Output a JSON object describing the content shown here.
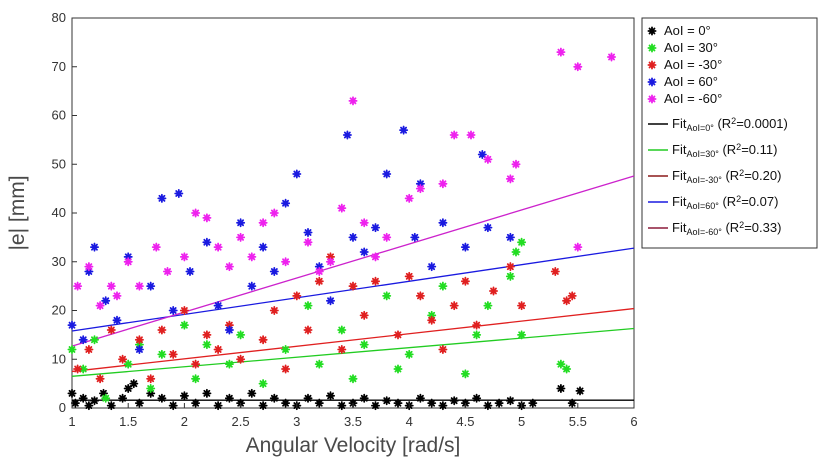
{
  "chart_data": {
    "type": "scatter",
    "xlabel": "Angular Velocity [rad/s]",
    "ylabel": "|e| [mm]",
    "xlim": [
      1,
      6
    ],
    "ylim": [
      0,
      80
    ],
    "xticks": [
      "1",
      "1.5",
      "2",
      "2.5",
      "3",
      "3.5",
      "4",
      "4.5",
      "5",
      "5.5",
      "6"
    ],
    "yticks": [
      "0",
      "10",
      "20",
      "30",
      "40",
      "50",
      "60",
      "70",
      "80"
    ],
    "grid": false,
    "legend_position": "outside-right",
    "series": [
      {
        "name": "AoI = 0°",
        "color": "#000000",
        "points": [
          [
            1.0,
            3
          ],
          [
            1.03,
            1
          ],
          [
            1.1,
            2
          ],
          [
            1.15,
            0.5
          ],
          [
            1.2,
            1.5
          ],
          [
            1.28,
            3
          ],
          [
            1.35,
            0.5
          ],
          [
            1.45,
            2
          ],
          [
            1.5,
            4
          ],
          [
            1.55,
            5
          ],
          [
            1.6,
            1
          ],
          [
            1.7,
            3
          ],
          [
            1.8,
            2
          ],
          [
            1.9,
            0.5
          ],
          [
            2.0,
            2.5
          ],
          [
            2.1,
            1
          ],
          [
            2.2,
            3
          ],
          [
            2.3,
            0.5
          ],
          [
            2.4,
            2
          ],
          [
            2.5,
            1
          ],
          [
            2.6,
            3
          ],
          [
            2.7,
            0.5
          ],
          [
            2.8,
            2
          ],
          [
            2.9,
            1
          ],
          [
            3.0,
            0.5
          ],
          [
            3.1,
            2
          ],
          [
            3.2,
            1
          ],
          [
            3.3,
            2.5
          ],
          [
            3.4,
            0.5
          ],
          [
            3.5,
            1
          ],
          [
            3.6,
            2
          ],
          [
            3.7,
            0.5
          ],
          [
            3.8,
            1.5
          ],
          [
            3.9,
            1
          ],
          [
            4.0,
            0.5
          ],
          [
            4.1,
            2
          ],
          [
            4.2,
            1
          ],
          [
            4.3,
            0.5
          ],
          [
            4.4,
            1.5
          ],
          [
            4.5,
            1
          ],
          [
            4.6,
            2
          ],
          [
            4.7,
            0.5
          ],
          [
            4.8,
            1
          ],
          [
            4.9,
            1.5
          ],
          [
            5.0,
            0.5
          ],
          [
            5.1,
            1
          ],
          [
            5.35,
            4
          ],
          [
            5.45,
            1
          ],
          [
            5.52,
            3.5
          ]
        ],
        "fit_label": "AoI=0°",
        "fit_r2": "0.0001",
        "fit_line": [
          [
            1,
            1.6
          ],
          [
            6,
            1.6
          ]
        ]
      },
      {
        "name": "AoI = 30°",
        "color": "#22dd22",
        "points": [
          [
            1.0,
            12
          ],
          [
            1.1,
            8
          ],
          [
            1.2,
            14
          ],
          [
            1.3,
            2
          ],
          [
            1.5,
            9
          ],
          [
            1.6,
            13
          ],
          [
            1.7,
            4
          ],
          [
            1.8,
            11
          ],
          [
            2.0,
            17
          ],
          [
            2.1,
            6
          ],
          [
            2.2,
            13
          ],
          [
            2.4,
            9
          ],
          [
            2.5,
            15
          ],
          [
            2.7,
            5
          ],
          [
            2.9,
            12
          ],
          [
            3.1,
            21
          ],
          [
            3.2,
            9
          ],
          [
            3.4,
            16
          ],
          [
            3.5,
            6
          ],
          [
            3.6,
            13
          ],
          [
            3.8,
            23
          ],
          [
            3.9,
            8
          ],
          [
            4.0,
            11
          ],
          [
            4.2,
            19
          ],
          [
            4.3,
            25
          ],
          [
            4.5,
            7
          ],
          [
            4.6,
            15
          ],
          [
            4.7,
            21
          ],
          [
            4.9,
            27
          ],
          [
            4.95,
            32
          ],
          [
            5.0,
            34
          ],
          [
            5.0,
            15
          ],
          [
            5.35,
            9
          ],
          [
            5.4,
            8
          ]
        ],
        "fit_label": "AoI=30°",
        "fit_r2": "0.11",
        "fit_line": [
          [
            1,
            6.5
          ],
          [
            6,
            16.3
          ]
        ]
      },
      {
        "name": "AoI = -30°",
        "color": "#e02020",
        "points": [
          [
            1.05,
            8
          ],
          [
            1.15,
            12
          ],
          [
            1.25,
            6
          ],
          [
            1.35,
            16
          ],
          [
            1.45,
            10
          ],
          [
            1.6,
            14
          ],
          [
            1.7,
            6
          ],
          [
            1.8,
            16
          ],
          [
            1.9,
            11
          ],
          [
            2.0,
            20
          ],
          [
            2.1,
            9
          ],
          [
            2.2,
            15
          ],
          [
            2.3,
            12
          ],
          [
            2.4,
            17
          ],
          [
            2.5,
            10
          ],
          [
            2.7,
            14
          ],
          [
            2.8,
            20
          ],
          [
            2.9,
            8
          ],
          [
            3.0,
            23
          ],
          [
            3.1,
            16
          ],
          [
            3.2,
            26
          ],
          [
            3.3,
            31
          ],
          [
            3.4,
            12
          ],
          [
            3.5,
            25
          ],
          [
            3.6,
            19
          ],
          [
            3.7,
            26
          ],
          [
            3.9,
            15
          ],
          [
            4.0,
            27
          ],
          [
            4.1,
            23
          ],
          [
            4.2,
            18
          ],
          [
            4.3,
            12
          ],
          [
            4.4,
            21
          ],
          [
            4.5,
            26
          ],
          [
            4.6,
            17
          ],
          [
            4.75,
            24
          ],
          [
            4.9,
            29
          ],
          [
            5.0,
            21
          ],
          [
            5.3,
            28
          ],
          [
            5.4,
            22
          ],
          [
            5.45,
            23
          ]
        ],
        "fit_label": "AoI=-30°",
        "fit_r2": "0.20",
        "fit_line": [
          [
            1,
            7.5
          ],
          [
            6,
            20.4
          ]
        ]
      },
      {
        "name": "AoI = 60°",
        "color": "#1a1ae0",
        "points": [
          [
            1.0,
            17
          ],
          [
            1.1,
            14
          ],
          [
            1.15,
            28
          ],
          [
            1.2,
            33
          ],
          [
            1.3,
            22
          ],
          [
            1.4,
            18
          ],
          [
            1.5,
            31
          ],
          [
            1.6,
            12
          ],
          [
            1.7,
            25
          ],
          [
            1.8,
            43
          ],
          [
            1.9,
            20
          ],
          [
            1.95,
            44
          ],
          [
            2.05,
            28
          ],
          [
            2.2,
            34
          ],
          [
            2.3,
            21
          ],
          [
            2.4,
            16
          ],
          [
            2.5,
            38
          ],
          [
            2.6,
            25
          ],
          [
            2.7,
            33
          ],
          [
            2.8,
            28
          ],
          [
            2.9,
            42
          ],
          [
            3.0,
            48
          ],
          [
            3.1,
            36
          ],
          [
            3.2,
            29
          ],
          [
            3.3,
            22
          ],
          [
            3.45,
            56
          ],
          [
            3.5,
            35
          ],
          [
            3.6,
            32
          ],
          [
            3.7,
            37
          ],
          [
            3.8,
            48
          ],
          [
            3.95,
            57
          ],
          [
            4.05,
            35
          ],
          [
            4.1,
            46
          ],
          [
            4.2,
            29
          ],
          [
            4.3,
            38
          ],
          [
            4.5,
            33
          ],
          [
            4.65,
            52
          ],
          [
            4.7,
            37
          ],
          [
            4.9,
            35
          ]
        ],
        "fit_label": "AoI=60°",
        "fit_r2": "0.07",
        "fit_line": [
          [
            1,
            15.8
          ],
          [
            6,
            32.8
          ]
        ]
      },
      {
        "name": "AoI = -60°",
        "color": "#ee22ee",
        "points": [
          [
            1.05,
            25
          ],
          [
            1.15,
            29
          ],
          [
            1.25,
            21
          ],
          [
            1.35,
            25
          ],
          [
            1.4,
            23
          ],
          [
            1.5,
            30
          ],
          [
            1.6,
            25
          ],
          [
            1.75,
            33
          ],
          [
            1.85,
            28
          ],
          [
            2.0,
            31
          ],
          [
            2.1,
            40
          ],
          [
            2.2,
            39
          ],
          [
            2.3,
            33
          ],
          [
            2.4,
            29
          ],
          [
            2.5,
            35
          ],
          [
            2.6,
            31
          ],
          [
            2.7,
            38
          ],
          [
            2.8,
            40
          ],
          [
            2.9,
            30
          ],
          [
            3.1,
            34
          ],
          [
            3.2,
            28
          ],
          [
            3.3,
            30
          ],
          [
            3.4,
            41
          ],
          [
            3.5,
            63
          ],
          [
            3.6,
            38
          ],
          [
            3.7,
            31
          ],
          [
            3.8,
            35
          ],
          [
            4.0,
            43
          ],
          [
            4.1,
            45
          ],
          [
            4.3,
            46
          ],
          [
            4.4,
            56
          ],
          [
            4.55,
            56
          ],
          [
            4.7,
            51
          ],
          [
            4.95,
            50
          ],
          [
            4.9,
            47
          ],
          [
            5.5,
            33
          ],
          [
            5.35,
            73
          ],
          [
            5.5,
            70
          ],
          [
            5.8,
            72
          ]
        ],
        "fit_label": "AoI=-60°",
        "fit_r2": "0.33",
        "fit_line": [
          [
            1,
            12.7
          ],
          [
            6,
            47.6
          ]
        ]
      }
    ],
    "fit_colors": [
      "#000000",
      "#22cc22",
      "#e02020",
      "#1a1ae0",
      "#cc22cc"
    ],
    "legend_fit_prefix": "Fit",
    "legend_fit_line_colors": [
      "#000000",
      "#22cc22",
      "#8b1a1a",
      "#1a1ae0",
      "#8b1a3a"
    ]
  }
}
